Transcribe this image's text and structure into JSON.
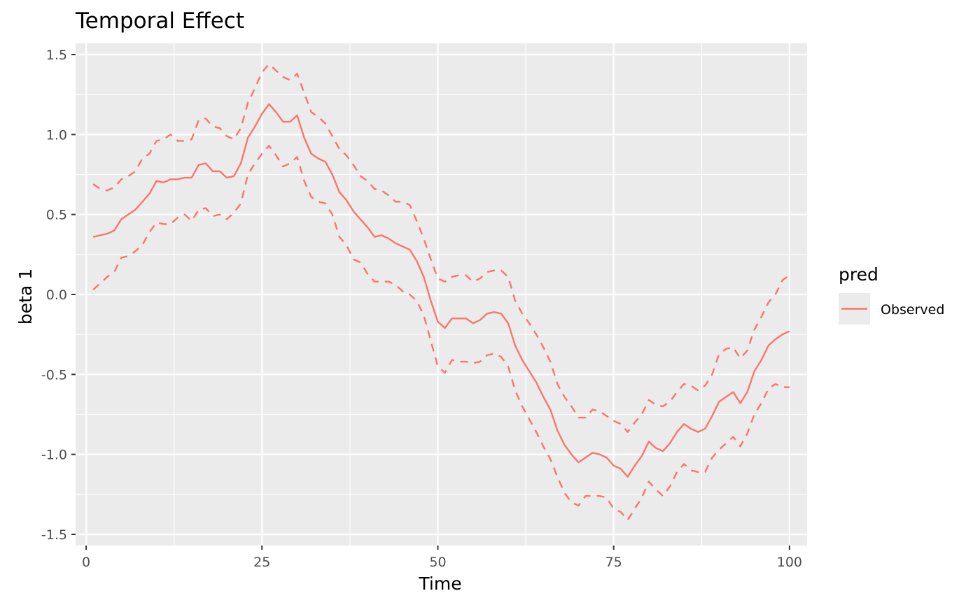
{
  "chart_data": {
    "type": "line",
    "title": "Temporal Effect",
    "xlabel": "Time",
    "ylabel": "beta 1",
    "xlim": [
      -1.5,
      102.5
    ],
    "ylim": [
      -1.57,
      1.57
    ],
    "x_ticks": [
      0,
      25,
      50,
      75,
      100
    ],
    "x_tick_labels": [
      "0",
      "25",
      "50",
      "75",
      "100"
    ],
    "y_ticks": [
      1.5,
      1.0,
      0.5,
      0.0,
      -0.5,
      -1.0,
      -1.5
    ],
    "y_tick_labels": [
      "1.5",
      "1.0",
      "0.5",
      "0.0",
      "-0.5",
      "-1.0",
      "-1.5"
    ],
    "grid": true,
    "legend": {
      "title": "pred",
      "placement": "right",
      "entries": [
        "Observed"
      ]
    },
    "colors": {
      "series": "#f8766d",
      "panel": "#ebebeb",
      "grid": "#ffffff"
    },
    "x": [
      1,
      2,
      3,
      4,
      5,
      6,
      7,
      8,
      9,
      10,
      11,
      12,
      13,
      14,
      15,
      16,
      17,
      18,
      19,
      20,
      21,
      22,
      23,
      24,
      25,
      26,
      27,
      28,
      29,
      30,
      31,
      32,
      33,
      34,
      35,
      36,
      37,
      38,
      39,
      40,
      41,
      42,
      43,
      44,
      45,
      46,
      47,
      48,
      49,
      50,
      51,
      52,
      53,
      54,
      55,
      56,
      57,
      58,
      59,
      60,
      61,
      62,
      63,
      64,
      65,
      66,
      67,
      68,
      69,
      70,
      71,
      72,
      73,
      74,
      75,
      76,
      77,
      78,
      79,
      80,
      81,
      82,
      83,
      84,
      85,
      86,
      87,
      88,
      89,
      90,
      91,
      92,
      93,
      94,
      95,
      96,
      97,
      98,
      99,
      100
    ],
    "series": [
      {
        "name": "Observed",
        "role": "estimate",
        "style": "solid",
        "values": [
          0.36,
          0.37,
          0.38,
          0.4,
          0.47,
          0.5,
          0.53,
          0.58,
          0.63,
          0.71,
          0.7,
          0.72,
          0.72,
          0.73,
          0.73,
          0.81,
          0.82,
          0.77,
          0.77,
          0.73,
          0.74,
          0.82,
          0.98,
          1.05,
          1.13,
          1.19,
          1.14,
          1.08,
          1.08,
          1.12,
          0.98,
          0.88,
          0.85,
          0.83,
          0.75,
          0.64,
          0.59,
          0.52,
          0.47,
          0.42,
          0.36,
          0.37,
          0.35,
          0.32,
          0.3,
          0.28,
          0.21,
          0.11,
          -0.04,
          -0.17,
          -0.21,
          -0.15,
          -0.15,
          -0.15,
          -0.18,
          -0.16,
          -0.12,
          -0.11,
          -0.12,
          -0.18,
          -0.32,
          -0.41,
          -0.48,
          -0.55,
          -0.64,
          -0.72,
          -0.85,
          -0.94,
          -1.0,
          -1.05,
          -1.02,
          -0.99,
          -1.0,
          -1.02,
          -1.07,
          -1.09,
          -1.14,
          -1.07,
          -1.01,
          -0.92,
          -0.96,
          -0.98,
          -0.93,
          -0.86,
          -0.81,
          -0.84,
          -0.86,
          -0.84,
          -0.76,
          -0.67,
          -0.64,
          -0.61,
          -0.68,
          -0.61,
          -0.48,
          -0.41,
          -0.32,
          -0.28,
          -0.25,
          -0.23
        ]
      },
      {
        "name": "Observed",
        "role": "upper",
        "style": "dashed",
        "values": [
          0.69,
          0.66,
          0.65,
          0.67,
          0.72,
          0.74,
          0.77,
          0.85,
          0.88,
          0.96,
          0.97,
          1.0,
          0.96,
          0.96,
          0.97,
          1.09,
          1.1,
          1.05,
          1.04,
          0.99,
          0.97,
          1.04,
          1.2,
          1.29,
          1.39,
          1.44,
          1.4,
          1.36,
          1.34,
          1.38,
          1.26,
          1.14,
          1.11,
          1.07,
          0.99,
          0.91,
          0.87,
          0.81,
          0.74,
          0.71,
          0.66,
          0.65,
          0.62,
          0.58,
          0.58,
          0.56,
          0.46,
          0.35,
          0.22,
          0.1,
          0.08,
          0.11,
          0.12,
          0.12,
          0.08,
          0.1,
          0.14,
          0.15,
          0.15,
          0.11,
          -0.04,
          -0.12,
          -0.18,
          -0.25,
          -0.33,
          -0.42,
          -0.56,
          -0.64,
          -0.7,
          -0.77,
          -0.77,
          -0.72,
          -0.73,
          -0.76,
          -0.79,
          -0.81,
          -0.86,
          -0.8,
          -0.75,
          -0.66,
          -0.69,
          -0.7,
          -0.67,
          -0.61,
          -0.56,
          -0.57,
          -0.6,
          -0.57,
          -0.5,
          -0.37,
          -0.34,
          -0.33,
          -0.4,
          -0.35,
          -0.22,
          -0.14,
          -0.05,
          0.0,
          0.09,
          0.12
        ]
      },
      {
        "name": "Observed",
        "role": "lower",
        "style": "dashed",
        "values": [
          0.03,
          0.07,
          0.11,
          0.14,
          0.23,
          0.24,
          0.27,
          0.31,
          0.39,
          0.45,
          0.44,
          0.44,
          0.48,
          0.5,
          0.46,
          0.53,
          0.54,
          0.49,
          0.5,
          0.47,
          0.51,
          0.57,
          0.75,
          0.82,
          0.88,
          0.93,
          0.87,
          0.8,
          0.82,
          0.86,
          0.71,
          0.61,
          0.58,
          0.57,
          0.5,
          0.36,
          0.31,
          0.22,
          0.2,
          0.13,
          0.08,
          0.08,
          0.08,
          0.06,
          0.02,
          0.0,
          -0.04,
          -0.13,
          -0.29,
          -0.45,
          -0.49,
          -0.41,
          -0.42,
          -0.42,
          -0.43,
          -0.42,
          -0.38,
          -0.37,
          -0.39,
          -0.45,
          -0.6,
          -0.7,
          -0.78,
          -0.86,
          -0.95,
          -1.03,
          -1.14,
          -1.24,
          -1.3,
          -1.32,
          -1.26,
          -1.26,
          -1.26,
          -1.27,
          -1.34,
          -1.36,
          -1.41,
          -1.34,
          -1.27,
          -1.17,
          -1.22,
          -1.26,
          -1.2,
          -1.11,
          -1.06,
          -1.1,
          -1.11,
          -1.11,
          -1.02,
          -0.97,
          -0.93,
          -0.89,
          -0.95,
          -0.87,
          -0.75,
          -0.68,
          -0.59,
          -0.56,
          -0.58,
          -0.58
        ]
      }
    ]
  }
}
